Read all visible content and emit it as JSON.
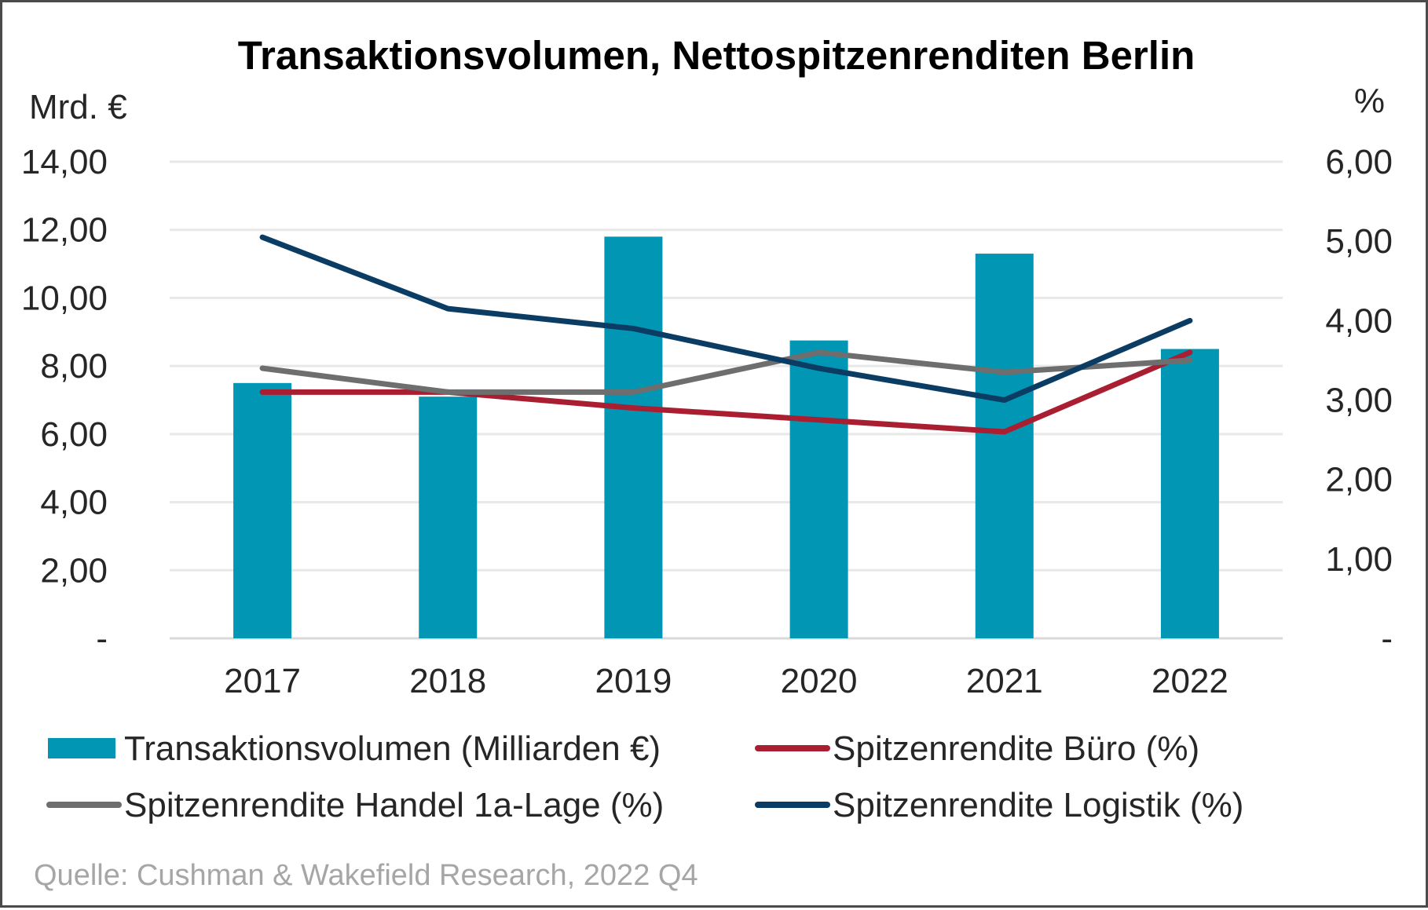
{
  "chart_data": {
    "type": "bar",
    "title": "Transaktionsvolumen, Nettospitzenrenditen Berlin",
    "categories": [
      "2017",
      "2018",
      "2019",
      "2020",
      "2021",
      "2022"
    ],
    "left_axis": {
      "unit_label": "Mrd. €",
      "range": [
        0,
        14
      ],
      "tick_labels": [
        "-",
        "2,00",
        "4,00",
        "6,00",
        "8,00",
        "10,00",
        "12,00",
        "14,00"
      ]
    },
    "right_axis": {
      "unit_label": "%",
      "range": [
        0,
        6
      ],
      "tick_labels": [
        "-",
        "1,00",
        "2,00",
        "3,00",
        "4,00",
        "5,00",
        "6,00"
      ]
    },
    "grid": true,
    "series": [
      {
        "name": "Transaktionsvolumen (Milliarden €)",
        "kind": "bar",
        "axis": "left",
        "color": "#0096b4",
        "values": [
          7.5,
          7.1,
          11.8,
          8.75,
          11.3,
          8.5
        ]
      },
      {
        "name": "Spitzenrendite Büro (%)",
        "kind": "line",
        "axis": "right",
        "color": "#aa1e32",
        "values": [
          3.1,
          3.1,
          2.9,
          2.75,
          2.6,
          3.6
        ]
      },
      {
        "name": "Spitzenrendite Handel 1a-Lage (%)",
        "kind": "line",
        "axis": "right",
        "color": "#6e6e6e",
        "values": [
          3.4,
          3.1,
          3.1,
          3.6,
          3.35,
          3.5
        ]
      },
      {
        "name": "Spitzenrendite Logistik (%)",
        "kind": "line",
        "axis": "right",
        "color": "#0a3c64",
        "values": [
          5.05,
          4.15,
          3.9,
          3.4,
          3.0,
          4.0
        ]
      }
    ],
    "legend_position": "bottom",
    "source": "Quelle: Cushman & Wakefield Research, 2022 Q4"
  }
}
